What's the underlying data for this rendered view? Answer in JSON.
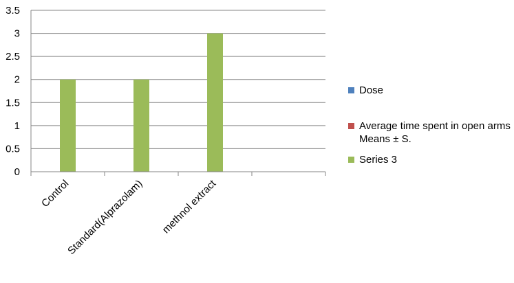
{
  "chart_data": {
    "type": "bar",
    "categories": [
      "Control",
      "Standard(Alprazolam)",
      "methnol extract",
      ""
    ],
    "series": [
      {
        "name": "Dose",
        "color": "#4f81bd",
        "values": [
          null,
          null,
          null,
          null
        ]
      },
      {
        "name": "Average time spent in open arms Means ± S.",
        "color": "#c0504d",
        "values": [
          null,
          null,
          null,
          null
        ]
      },
      {
        "name": "Series 3",
        "color": "#9bbb59",
        "values": [
          2,
          2,
          3,
          null
        ]
      }
    ],
    "ylim": [
      0,
      3.5
    ],
    "yticks": [
      "0",
      "0.5",
      "1",
      "1.5",
      "2",
      "2.5",
      "3",
      "3.5"
    ],
    "grid": true,
    "legend_position": "right"
  }
}
